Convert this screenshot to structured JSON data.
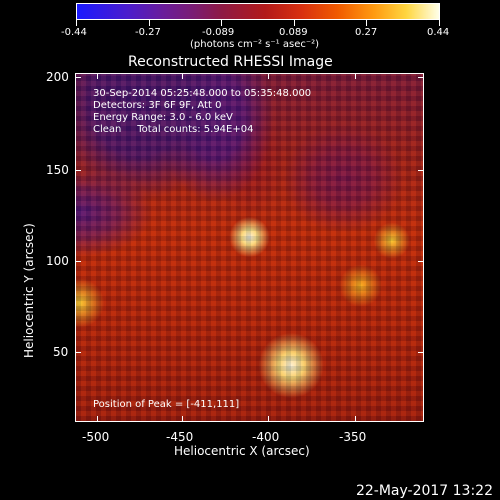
{
  "colorbar": {
    "tick_labels": [
      "-0.44",
      "-0.27",
      "-0.089",
      "0.089",
      "0.27",
      "0.44"
    ],
    "units_text": "(photons cm⁻² s⁻¹ asec⁻²)"
  },
  "title": "Reconstructed RHESSI Image",
  "info": {
    "time_range": "30-Sep-2014 05:25:48.000 to 05:35:48.000",
    "detectors": "Detectors: 3F 6F 9F, Att 0",
    "energy_range": "Energy Range: 3.0 - 6.0 keV",
    "clean_counts": "Clean     Total counts: 5.94E+04"
  },
  "peak_position": "Position of Peak = [-411,111]",
  "x_axis": {
    "label": "Heliocentric X (arcsec)",
    "tick_labels": [
      "-500",
      "-450",
      "-400",
      "-350"
    ]
  },
  "y_axis": {
    "label": "Heliocentric Y (arcsec)",
    "tick_labels": [
      "200",
      "150",
      "100",
      "50"
    ]
  },
  "footer_date": "22-May-2017 13:22",
  "colors": {
    "background": "#000000",
    "foreground": "#ffffff",
    "cmap_low": "#1a1aff",
    "cmap_mid": "#b21a1a",
    "cmap_high": "#ffffe8"
  }
}
